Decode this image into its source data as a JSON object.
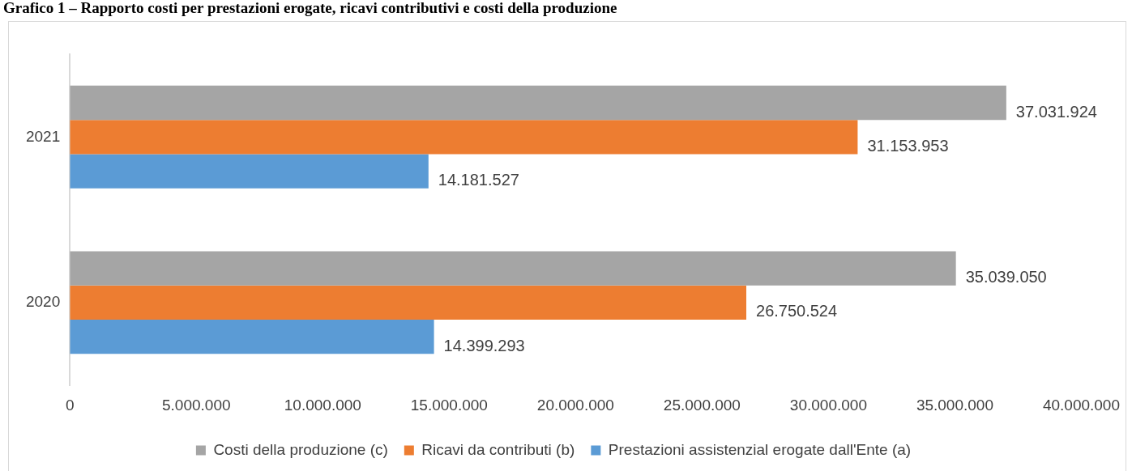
{
  "chart_data": {
    "type": "bar",
    "orientation": "horizontal",
    "title": "Grafico 1 – Rapporto costi per prestazioni erogate, ricavi contributivi e costi della produzione",
    "categories": [
      "2021",
      "2020"
    ],
    "series": [
      {
        "name": "Costi della produzione (c)",
        "color": "#a5a5a5",
        "values": [
          37031924,
          35039050
        ],
        "value_labels": [
          "37.031.924",
          "35.039.050"
        ]
      },
      {
        "name": "Ricavi da contributi (b)",
        "color": "#ed7d31",
        "values": [
          31153953,
          26750524
        ],
        "value_labels": [
          "31.153.953",
          "26.750.524"
        ]
      },
      {
        "name": "Prestazioni assistenzial erogate dall'Ente (a)",
        "color": "#5b9bd5",
        "values": [
          14181527,
          14399293
        ],
        "value_labels": [
          "14.181.527",
          "14.399.293"
        ]
      }
    ],
    "xlim": [
      0,
      40000000
    ],
    "xticks": [
      0,
      {
        "value": 5000000,
        "label": "5.000.000"
      },
      {
        "value": 10000000,
        "label": "10.000.000"
      },
      {
        "value": 15000000,
        "label": "15.000.000"
      },
      {
        "value": 20000000,
        "label": "20.000.000"
      },
      {
        "value": 25000000,
        "label": "25.000.000"
      },
      {
        "value": 30000000,
        "label": "30.000.000"
      },
      {
        "value": 35000000,
        "label": "35.000.000"
      },
      {
        "value": 40000000,
        "label": "40.000.000"
      }
    ],
    "grid": false,
    "legend": "bottom"
  }
}
